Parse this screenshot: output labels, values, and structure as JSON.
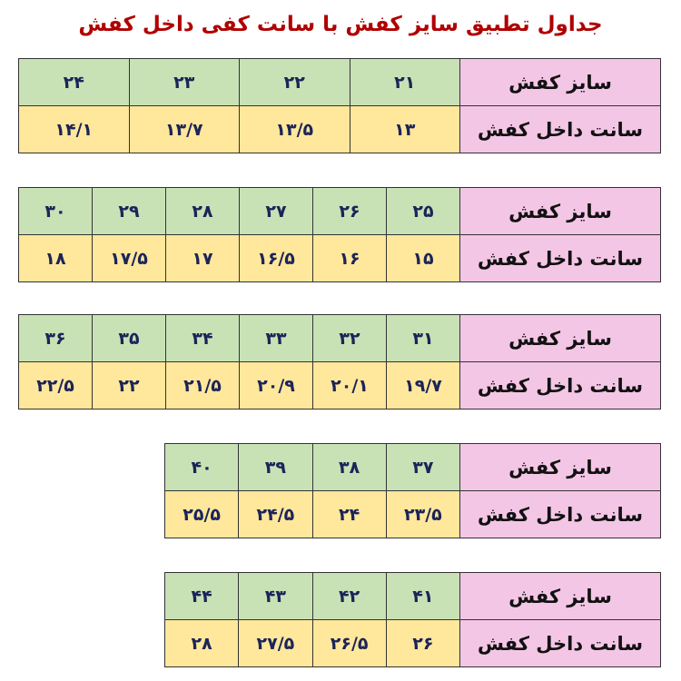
{
  "title": "جداول تطبیق سایز کفش با سانت کفی داخل کفش",
  "row_labels": {
    "size": "سایز کفش",
    "cm": "سانت داخل کفش"
  },
  "colors": {
    "label_bg": "#f4c6e6",
    "size_bg": "#c8e2b6",
    "cm_bg": "#ffe79c",
    "title": "#b00000",
    "numbers": "#1c2458"
  },
  "tables": [
    {
      "sizes": [
        "۲۱",
        "۲۲",
        "۲۳",
        "۲۴"
      ],
      "cm": [
        "۱۳",
        "۱۳/۵",
        "۱۳/۷",
        "۱۴/۱"
      ]
    },
    {
      "sizes": [
        "۲۵",
        "۲۶",
        "۲۷",
        "۲۸",
        "۲۹",
        "۳۰"
      ],
      "cm": [
        "۱۵",
        "۱۶",
        "۱۶/۵",
        "۱۷",
        "۱۷/۵",
        "۱۸"
      ]
    },
    {
      "sizes": [
        "۳۱",
        "۳۲",
        "۳۳",
        "۳۴",
        "۳۵",
        "۳۶"
      ],
      "cm": [
        "۱۹/۷",
        "۲۰/۱",
        "۲۰/۹",
        "۲۱/۵",
        "۲۲",
        "۲۲/۵"
      ]
    },
    {
      "sizes": [
        "۳۷",
        "۳۸",
        "۳۹",
        "۴۰"
      ],
      "cm": [
        "۲۳/۵",
        "۲۴",
        "۲۴/۵",
        "۲۵/۵"
      ]
    },
    {
      "sizes": [
        "۴۱",
        "۴۲",
        "۴۳",
        "۴۴"
      ],
      "cm": [
        "۲۶",
        "۲۶/۵",
        "۲۷/۵",
        "۲۸"
      ]
    }
  ]
}
